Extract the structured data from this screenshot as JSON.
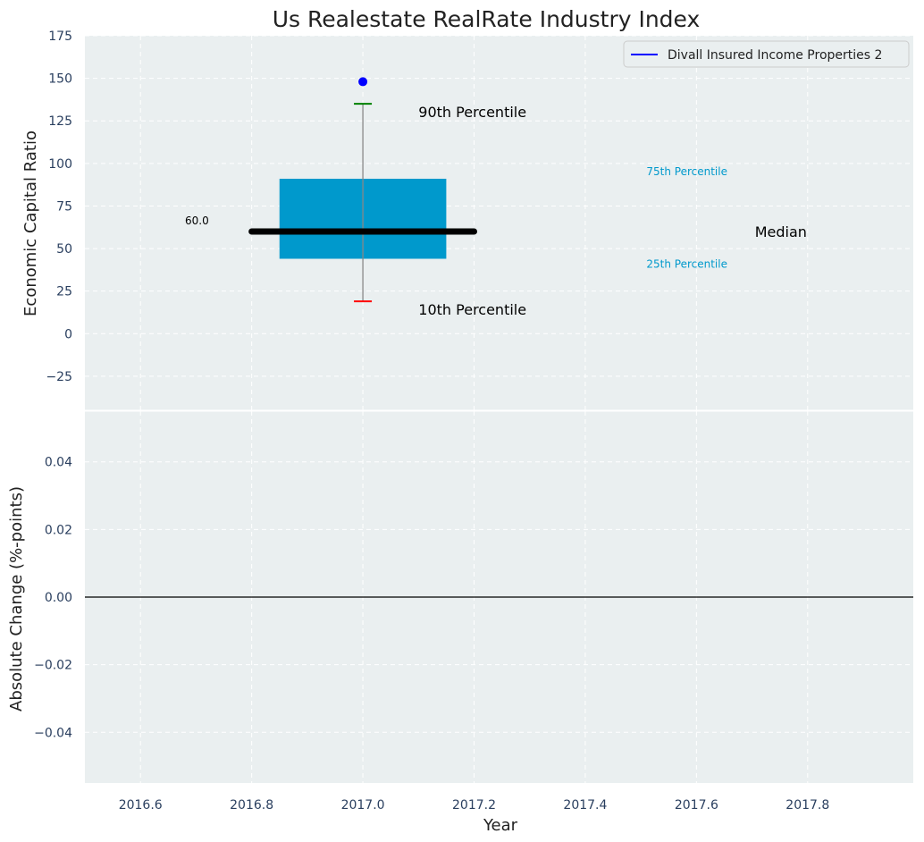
{
  "chart_data": {
    "type": "box",
    "title": "Us Realestate RealRate Industry Index",
    "xlabel": "Year",
    "xlim": [
      2016.5,
      2017.99
    ],
    "x_ticks": [
      2016.6,
      2016.8,
      2017.0,
      2017.2,
      2017.4,
      2017.6,
      2017.8
    ],
    "x_tick_labels": [
      "2016.6",
      "2016.8",
      "2017.0",
      "2017.2",
      "2017.4",
      "2017.6",
      "2017.8"
    ],
    "grid": true,
    "legend_position": "top-right",
    "top_panel": {
      "ylabel": "Economic Capital Ratio",
      "ylim": [
        -45,
        175
      ],
      "y_ticks": [
        -25,
        0,
        25,
        50,
        75,
        100,
        125,
        150,
        175
      ],
      "y_tick_labels": [
        "−25",
        "0",
        "25",
        "50",
        "75",
        "100",
        "125",
        "150",
        "175"
      ],
      "box": {
        "x": 2017.0,
        "x_range": [
          2016.85,
          2017.15
        ],
        "p10": 19,
        "p25": 44,
        "median": 60,
        "p75": 91,
        "p90": 135,
        "median_line_x": [
          2016.8,
          2017.2
        ],
        "color": "#0099cc"
      },
      "series": [
        {
          "name": "Divall Insured Income Properties 2",
          "x": [
            2017.0
          ],
          "y": [
            148
          ],
          "color": "#0000ff"
        }
      ],
      "annotations": {
        "p90_label": "90th Percentile",
        "p10_label": "10th Percentile",
        "p75_label": "75th Percentile",
        "p25_label": "25th Percentile",
        "median_label": "Median",
        "median_value": "60.0"
      },
      "whisker_colors": {
        "p90": "#008000",
        "p10": "#ff0000"
      }
    },
    "bottom_panel": {
      "ylabel": "Absolute Change (%-points)",
      "ylim": [
        -0.055,
        0.055
      ],
      "y_ticks": [
        -0.04,
        -0.02,
        0.0,
        0.02,
        0.04
      ],
      "y_tick_labels": [
        "−0.04",
        "−0.02",
        "0.00",
        "0.02",
        "0.04"
      ],
      "reference_line_y": 0.0
    }
  }
}
